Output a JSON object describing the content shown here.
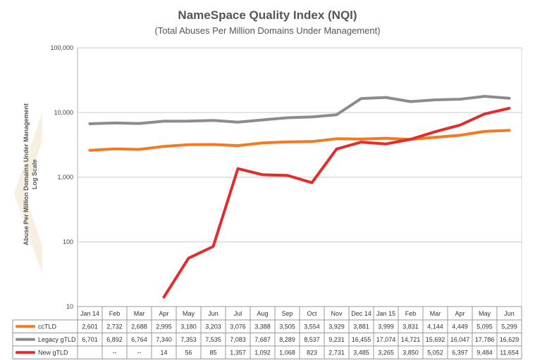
{
  "chart_data": {
    "type": "line",
    "title": "NameSpace Quality Index (NQI)",
    "subtitle": "(Total Abuses Per Million Domains Under Management)",
    "ylabel": "Abuse Per Million Domains Under Management",
    "ylabel2": "Log Scale",
    "yscale": "log",
    "ylim": [
      10,
      100000
    ],
    "yticks": [
      {
        "value": 100000,
        "label": "100,000"
      },
      {
        "value": 10000,
        "label": "10,000"
      },
      {
        "value": 1000,
        "label": "1,000"
      },
      {
        "value": 100,
        "label": "100"
      },
      {
        "value": 10,
        "label": "10"
      }
    ],
    "categories": [
      "Jan 14",
      "Feb",
      "Mar",
      "Apr",
      "May",
      "Jun",
      "Jul",
      "Aug",
      "Sep",
      "Oct",
      "Nov",
      "Dec 14",
      "Jan 15",
      "Feb",
      "Mar",
      "Apr",
      "May",
      "Jun"
    ],
    "grid": true,
    "legend_placement": "table-left",
    "series": [
      {
        "name": "ccTLD",
        "color": "#f47920",
        "values": [
          2601,
          2732,
          2688,
          2995,
          3180,
          3203,
          3076,
          3388,
          3505,
          3554,
          3929,
          3881,
          3999,
          3831,
          4144,
          4449,
          5095,
          5299
        ],
        "labels": [
          "2,601",
          "2,732",
          "2,688",
          "2,995",
          "3,180",
          "3,203",
          "3,076",
          "3,388",
          "3,505",
          "3,554",
          "3,929",
          "3,881",
          "3,999",
          "3,831",
          "4,144",
          "4,449",
          "5,095",
          "5,299"
        ]
      },
      {
        "name": "Legacy gTLD",
        "color": "#8c8c8c",
        "values": [
          6701,
          6892,
          6764,
          7340,
          7353,
          7535,
          7083,
          7687,
          8289,
          8537,
          9231,
          16455,
          17074,
          14721,
          15692,
          16047,
          17786,
          16629
        ],
        "labels": [
          "6,701",
          "6,892",
          "6,764",
          "7,340",
          "7,353",
          "7,535",
          "7,083",
          "7,687",
          "8,289",
          "8,537",
          "9,231",
          "16,455",
          "17,074",
          "14,721",
          "15,692",
          "16,047",
          "17,786",
          "16,629"
        ]
      },
      {
        "name": "New gTLD",
        "color": "#e42c2c",
        "values": [
          null,
          null,
          null,
          14,
          56,
          85,
          1357,
          1092,
          1068,
          823,
          2731,
          3485,
          3265,
          3850,
          5052,
          6397,
          9484,
          11654
        ],
        "labels": [
          "",
          "--",
          "--",
          "14",
          "56",
          "85",
          "1,357",
          "1,092",
          "1,068",
          "823",
          "2,731",
          "3,485",
          "3,265",
          "3,850",
          "5,052",
          "6,397",
          "9,484",
          "11,654"
        ]
      }
    ]
  }
}
